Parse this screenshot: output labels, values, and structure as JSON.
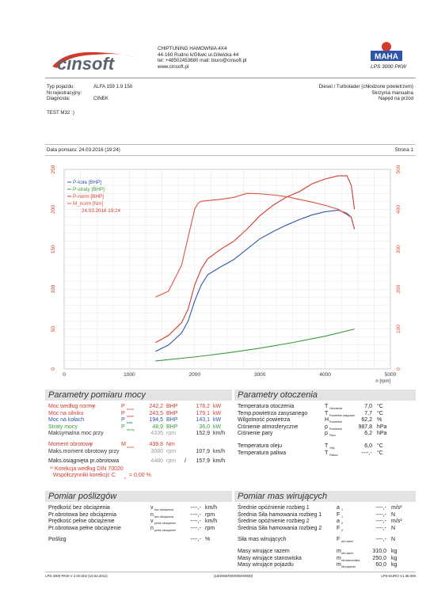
{
  "header": {
    "logo_text": "cinsoft",
    "company_lines": [
      "CHIPTUNING HAMOWNIA 4X4",
      "44-160 Rudno k/Gliwic ul.Gliwicka 44",
      "tel: +48502453680 mail: biuro@cinsoft.pl",
      "www.cinsoft.pl"
    ],
    "maha_label": "MAHA",
    "maha_model": "LPS 3000 PKW"
  },
  "vehicle": {
    "typ_label": "Typ pojazdu:",
    "typ_value": "ALFA 159 1.9 150",
    "nr_label": "Nr.rejestracyjny:",
    "nr_value": "",
    "diag_label": "Diagnosta:",
    "diag_value": "CINEK",
    "engine": "Diesel / Turbolader (chłodzone powietrzem)",
    "gearbox": "Skrzynia manualna",
    "drive": "Napęd na przód",
    "test": "TEST M32 :)"
  },
  "measure": {
    "date_label": "Data pomiaru: 24.03.2016 (19:24)",
    "page_label": "Strona 1"
  },
  "chart_data": {
    "type": "line",
    "xlabel": "n [rpm]",
    "xlim": [
      0,
      5000
    ],
    "ylim_left": [
      0,
      250
    ],
    "ylim_right": [
      0,
      500
    ],
    "x_ticks": [
      "0",
      "1000",
      "2000",
      "3000",
      "4000",
      "5000"
    ],
    "y_ticks_left": [
      "0",
      "50",
      "100",
      "150",
      "200",
      "250"
    ],
    "y_ticks_right": [
      "0",
      "100",
      "200",
      "300",
      "400",
      "500"
    ],
    "legend": [
      "P-koła [BHP]",
      "P-straty [BHP]",
      "P-norm [BHP]",
      "M_norm [Nm]",
      "24.03.2016 19:24"
    ],
    "series": [
      {
        "name": "P-koła [BHP]",
        "color": "#3355aa",
        "axis": "left",
        "x": [
          1400,
          1600,
          1800,
          1900,
          2000,
          2100,
          2200,
          2400,
          2600,
          2800,
          3000,
          3200,
          3400,
          3600,
          3800,
          4000,
          4200,
          4335,
          4400,
          4450
        ],
        "y": [
          22,
          30,
          45,
          60,
          85,
          105,
          118,
          128,
          137,
          150,
          163,
          172,
          180,
          187,
          193,
          197,
          199,
          195,
          190,
          175
        ]
      },
      {
        "name": "P-straty [BHP]",
        "color": "#3a9a3a",
        "axis": "left",
        "x": [
          1400,
          2000,
          2500,
          3000,
          3500,
          4000,
          4450
        ],
        "y": [
          10,
          15,
          20,
          26,
          33,
          41,
          50
        ]
      },
      {
        "name": "P-norm [BHP]",
        "color": "#d33a2c",
        "axis": "left",
        "x": [
          1400,
          1600,
          1800,
          1900,
          2000,
          2100,
          2200,
          2400,
          2600,
          2800,
          3000,
          3200,
          3400,
          3600,
          3800,
          4000,
          4200,
          4335,
          4400,
          4450
        ],
        "y": [
          33,
          42,
          58,
          75,
          105,
          125,
          138,
          150,
          160,
          175,
          192,
          205,
          215,
          222,
          232,
          238,
          242,
          242,
          230,
          200
        ]
      },
      {
        "name": "M_norm [Nm]",
        "color": "#e0503a",
        "axis": "right",
        "x": [
          1400,
          1600,
          1800,
          1900,
          2000,
          2050,
          2100,
          2200,
          2400,
          2600,
          2800,
          3000,
          3200,
          3400,
          3600,
          3800,
          4000,
          4200,
          4400,
          4450
        ],
        "y": [
          180,
          195,
          260,
          330,
          400,
          415,
          420,
          422,
          425,
          430,
          440,
          439,
          436,
          432,
          425,
          418,
          410,
          400,
          380,
          350
        ]
      }
    ]
  },
  "results": {
    "title": "Parametry pomiaru mocy",
    "rows": [
      {
        "label": "Moc według normy",
        "sup": "1)",
        "sym": "P",
        "sub": "norm",
        "v1": "242,2",
        "u1": "BHP",
        "v2": "178,2",
        "u2": "kW",
        "color": "red"
      },
      {
        "label": "Moc na silniku",
        "sup": "",
        "sym": "P",
        "sub": "silnik",
        "v1": "243,5",
        "u1": "BHP",
        "v2": "179,1",
        "u2": "kW",
        "color": "red"
      },
      {
        "label": "Moc na kołach",
        "sup": "",
        "sym": "P",
        "sub": "koła",
        "v1": "194,5",
        "u1": "BHP",
        "v2": "143,1",
        "u2": "kW",
        "color": "blue"
      },
      {
        "label": "Straty mocy",
        "sup": "",
        "sym": "P",
        "sub": "straty",
        "v1": "48,9",
        "u1": "BHP",
        "v2": "36,0",
        "u2": "kW",
        "color": "green"
      },
      {
        "label": "Maksymalna moc przy",
        "sup": "",
        "sym": "",
        "sub": "",
        "v1": "4335",
        "u1": "rpm",
        "v2": "152,9",
        "u2": "km/h",
        "color": "dark"
      }
    ],
    "torque_rows": [
      {
        "label": "Moment obrotowy",
        "sup": "1)",
        "sym": "M",
        "sub": "norm",
        "v1": "439,8",
        "u1": "Nm",
        "v2": "",
        "u2": "",
        "color": "red"
      },
      {
        "label": "Maks.moment obrotowy przy",
        "sup": "",
        "sym": "",
        "sub": "",
        "v1": "3080",
        "u1": "rpm",
        "v2": "107,9",
        "u2": "km/h",
        "color": "dark"
      }
    ],
    "speed_row": {
      "label": "Maks.osiągnięta pr.obrotowa",
      "v1": "4480",
      "u1": "rpm",
      "v2": "157,9",
      "u2": "km/h"
    },
    "note1": "¹⁾ Korekcja według DIN 70020",
    "note2": "Współczynniki korekcji:  C",
    "note2_sub": "o",
    "note2_val": "=   0,00 %"
  },
  "environment": {
    "title": "Parametry otoczenia",
    "rows": [
      {
        "label": "Temperatura otoczenia",
        "sym": "T",
        "sub": "Otoczenia",
        "val": "7,0",
        "unit": "°C"
      },
      {
        "label": "Temp.powietrza zasysanego",
        "sym": "T",
        "sub": "Powietrze zasysane",
        "val": "7,7",
        "unit": "°C"
      },
      {
        "label": "Wilgotność powietrza",
        "sym": "H",
        "sub": "Powietrze",
        "val": "62,2",
        "unit": "%"
      },
      {
        "label": "Ciśnienie atmosferyczne",
        "sym": "p",
        "sub": "Powietrze",
        "val": "987,8",
        "unit": "hPa"
      },
      {
        "label": "Ciśnienie pary",
        "sym": "p",
        "sub": "Para",
        "val": "6,2",
        "unit": "hPa"
      }
    ],
    "rows2": [
      {
        "label": "Temperatura oleju",
        "sym": "T",
        "sub": "Olej",
        "val": "6,0",
        "unit": "°C"
      },
      {
        "label": "Temperatura paliwa",
        "sym": "T",
        "sub": "Paliwo",
        "val": "----,-",
        "unit": "°C"
      }
    ]
  },
  "slip": {
    "title": "Pomiar poślizgów",
    "rows": [
      {
        "label": "Prędkość bez obciążenia",
        "sym": "v",
        "sub": "bez obciążenia",
        "val": "----,-",
        "unit": "km/h"
      },
      {
        "label": "Pr.obrotowa bez obciążenia",
        "sym": "n",
        "sub": "bez obciążenia",
        "val": "----,-",
        "unit": "rpm"
      },
      {
        "label": "Prędkość pełne obciążenie",
        "sym": "v",
        "sub": "pełne obciążenie",
        "val": "----,-",
        "unit": "km/h"
      },
      {
        "label": "Pr.obrotowa pełne obciążenie",
        "sym": "n",
        "sub": "pełne obciążenie",
        "val": "----,-",
        "unit": "rpm"
      }
    ],
    "slip_row": {
      "label": "Poślizg",
      "val": "----,-",
      "unit": "%"
    }
  },
  "mass": {
    "title": "Pomiar mas wirujących",
    "rows": [
      {
        "label": "Średnie opóźnienie rozbieg 1",
        "sym": "a",
        "sub": "1",
        "val": "----,-",
        "unit": "m/s²"
      },
      {
        "label": "Średnia Siła hamowania rozbieg 1",
        "sym": "F",
        "sub": "1",
        "val": "----,-",
        "unit": "N"
      },
      {
        "label": "Średnie opóźnienie rozbieg 2",
        "sym": "a",
        "sub": "2",
        "val": "----,-",
        "unit": "m/s²"
      },
      {
        "label": "Średnia Siła hamowania rozbieg 2",
        "sym": "F",
        "sub": "2",
        "val": "----,-",
        "unit": "N"
      }
    ],
    "force_row": {
      "label": "Siła mas wirujących",
      "sym": "F",
      "sub": "wir.razem",
      "val": "----,-",
      "unit": "N"
    },
    "mass_rows": [
      {
        "label": "Masy wirujące razem",
        "sym": "m",
        "sub": "wir.razem",
        "val": "310,0",
        "unit": "kg"
      },
      {
        "label": "Masy wirujące stanowiska",
        "sym": "m",
        "sub": "wir.stanowiska",
        "val": "250,0",
        "unit": "kg"
      },
      {
        "label": "Masy wirujące pojazdu",
        "sym": "m",
        "sub": "wir.pojazdu",
        "val": "60,0",
        "unit": "kg"
      }
    ]
  },
  "footer": {
    "left": "LPS 3000 PKW V 2.00.002 (10.02.2011)",
    "center": "(100/000/000/000/00000)",
    "right": "LPS-EURO V1.35.000"
  }
}
